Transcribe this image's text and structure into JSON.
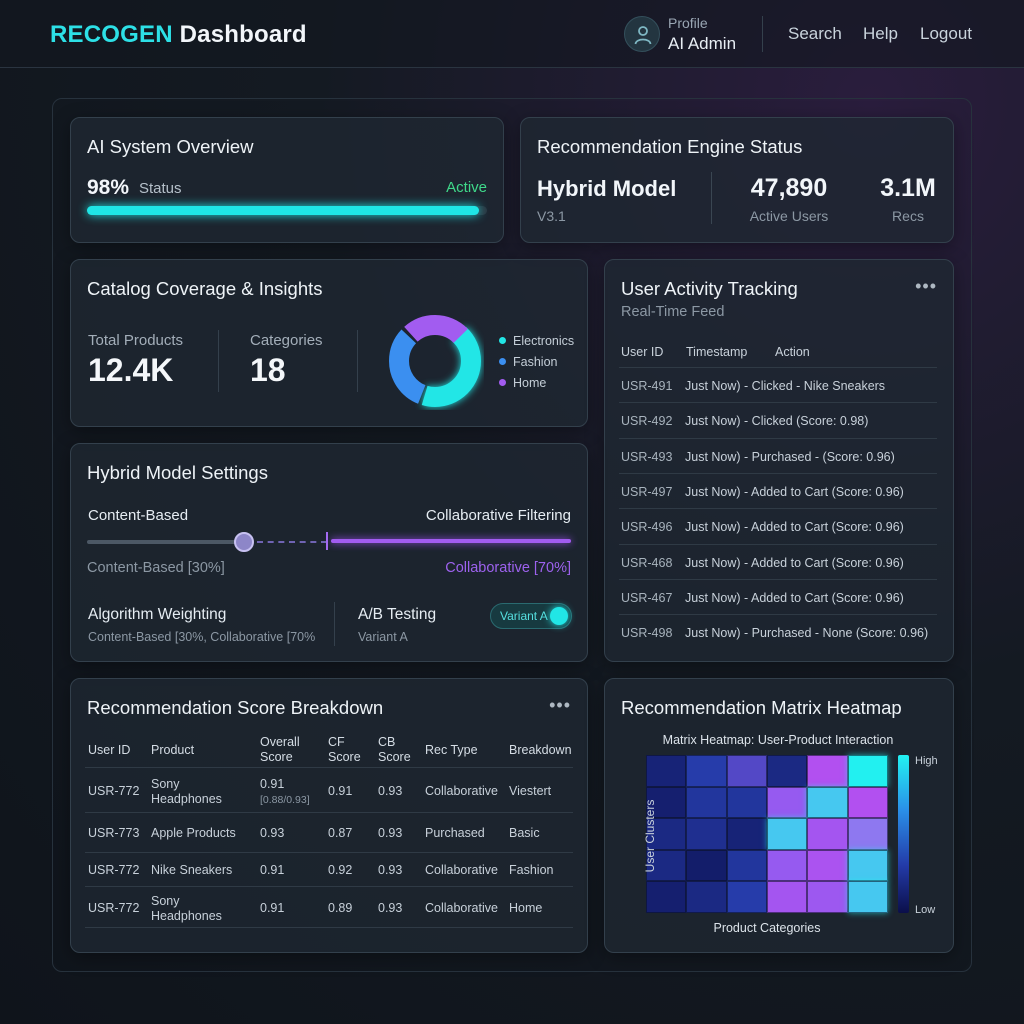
{
  "header": {
    "brand_accent": "RECOGEN",
    "brand_rest": "Dashboard",
    "profile_label": "Profile",
    "profile_name": "AI Admin",
    "nav": [
      "Search",
      "Help",
      "Logout"
    ]
  },
  "overview": {
    "title": "AI System Overview",
    "percent": "98%",
    "status_label": "Status",
    "state": "Active",
    "progress": 0.98
  },
  "engine": {
    "title": "Recommendation Engine Status",
    "model": "Hybrid Model",
    "version": "V3.1",
    "active_users_value": "47,890",
    "active_users_label": "Active Users",
    "recs_value": "3.1M",
    "recs_label": "Recs"
  },
  "catalog": {
    "title": "Catalog Coverage & Insights",
    "total_label": "Total Products",
    "total_value": "12.4K",
    "categories_label": "Categories",
    "categories_value": "18",
    "legend": [
      {
        "label": "Electronics",
        "color": "#22e6e6"
      },
      {
        "label": "Fashion",
        "color": "#3b8ff0"
      },
      {
        "label": "Home",
        "color": "#a25cf0"
      }
    ]
  },
  "activity": {
    "title": "User Activity Tracking",
    "subtitle": "Real-Time Feed",
    "headers": [
      "User ID",
      "Timestamp",
      "Action"
    ],
    "rows": [
      {
        "id": "USR-491",
        "text": "Just Now) - Clicked - Nike Sneakers"
      },
      {
        "id": "USR-492",
        "text": "Just Now) - Clicked   (Score: 0.98)"
      },
      {
        "id": "USR-493",
        "text": "Just Now) - Purchased - (Score: 0.96)"
      },
      {
        "id": "USR-497",
        "text": "Just Now) - Added to Cart (Score: 0.96)"
      },
      {
        "id": "USR-496",
        "text": "Just Now) - Added to Cart (Score: 0.96)"
      },
      {
        "id": "USR-468",
        "text": "Just Now) - Added to Cart (Score: 0.96)"
      },
      {
        "id": "USR-467",
        "text": "Just Now) - Added to Cart (Score: 0.96)"
      },
      {
        "id": "USR-498",
        "text": "Just Now) - Purchased - None (Score: 0.96)"
      }
    ]
  },
  "hybrid": {
    "title": "Hybrid Model Settings",
    "left_label": "Content-Based",
    "right_label": "Collaborative Filtering",
    "left_pct": "Content-Based [30%]",
    "right_pct": "Collaborative [70%]",
    "slider_value": 0.3,
    "algo_title": "Algorithm Weighting",
    "algo_desc": "Content-Based [30%, Collaborative [70%",
    "ab_title": "A/B Testing",
    "ab_desc": "Variant A",
    "toggle_label": "Variant A"
  },
  "scores": {
    "title": "Recommendation Score Breakdown",
    "headers": [
      "User ID",
      "Product",
      "Overall Score",
      "CF Score",
      "CB Score",
      "Rec Type",
      "Breakdown"
    ],
    "rows": [
      {
        "user": "USR-772",
        "product": "Sony Headphones",
        "overall": "0.91",
        "overall_sub": "[0.88/0.93]",
        "cf": "0.91",
        "cb": "0.93",
        "type": "Collaborative",
        "breakdown": "Viestert"
      },
      {
        "user": "USR-773",
        "product": "Apple Products",
        "overall": "0.93",
        "overall_sub": "",
        "cf": "0.87",
        "cb": "0.93",
        "type": "Purchased",
        "breakdown": "Basic"
      },
      {
        "user": "USR-772",
        "product": "Nike Sneakers",
        "overall": "0.91",
        "overall_sub": "",
        "cf": "0.92",
        "cb": "0.93",
        "type": "Collaborative",
        "breakdown": "Fashion"
      },
      {
        "user": "USR-772",
        "product": "Sony Headphones",
        "overall": "0.91",
        "overall_sub": "",
        "cf": "0.89",
        "cb": "0.93",
        "type": "Collaborative",
        "breakdown": "Home"
      }
    ]
  },
  "heatmap": {
    "title": "Recommendation Matrix Heatmap",
    "chart_title": "Matrix Heatmap: User-Product Interaction",
    "y_label": "User Clusters",
    "x_label": "Product Categories",
    "high_label": "High",
    "low_label": "Low",
    "matrix": [
      [
        0.15,
        0.35,
        0.45,
        0.2,
        0.8,
        1.0
      ],
      [
        0.12,
        0.3,
        0.3,
        0.6,
        0.95,
        0.8
      ],
      [
        0.2,
        0.25,
        0.15,
        0.95,
        0.7,
        0.85
      ],
      [
        0.2,
        0.1,
        0.3,
        0.6,
        0.75,
        0.95
      ],
      [
        0.12,
        0.2,
        0.35,
        0.7,
        0.65,
        0.95
      ]
    ]
  }
}
